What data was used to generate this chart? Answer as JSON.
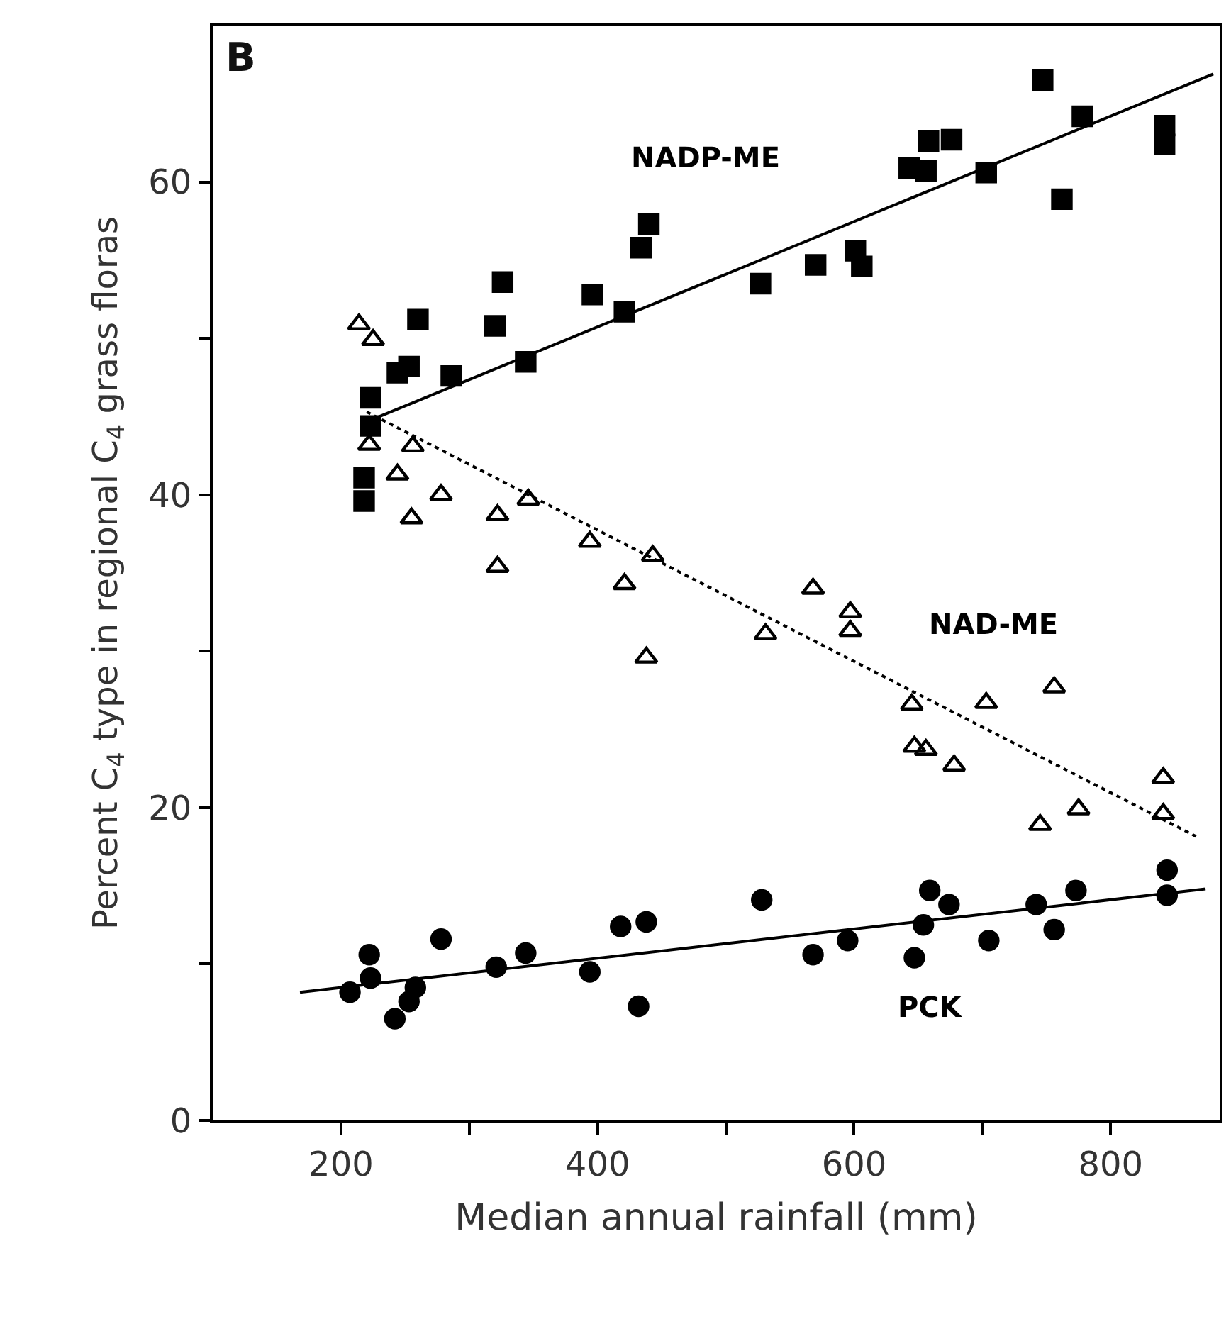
{
  "chart_data": {
    "type": "scatter",
    "xlabel": "Median annual rainfall (mm)",
    "ylabel": "Percent C$_{4}$ type in regional C$_{4}$ grass floras",
    "xlim": [
      100,
      885
    ],
    "ylim": [
      0,
      70
    ],
    "xticks": [
      200,
      {
        "value": 300,
        "label": null
      },
      400,
      {
        "value": 500,
        "label": null
      },
      600,
      {
        "value": 700,
        "label": null
      },
      800
    ],
    "yticks": [
      0,
      {
        "value": 10,
        "label": null
      },
      20,
      {
        "value": 30,
        "label": null
      },
      40,
      {
        "value": 50,
        "label": null
      },
      60
    ],
    "legend": false,
    "annotations": [
      "B"
    ],
    "series": [
      {
        "marker": "square",
        "color": "#000000",
        "x": [
          440,
          434,
          326,
          396,
          421,
          260,
          320,
          344,
          286,
          253,
          244,
          223,
          223,
          218,
          218,
          527,
          570,
          601,
          606,
          643,
          658,
          676,
          656,
          703,
          762,
          778,
          747,
          842,
          842
        ],
        "values": [
          57.3,
          55.8,
          53.6,
          52.8,
          51.7,
          51.2,
          50.8,
          48.5,
          47.6,
          48.2,
          47.8,
          46.2,
          44.4,
          41.1,
          39.6,
          53.5,
          54.7,
          55.6,
          54.6,
          60.9,
          62.6,
          62.7,
          60.7,
          60.6,
          58.9,
          64.2,
          66.5,
          63.6,
          62.4
        ]
      },
      {
        "marker": "triangle",
        "color": "#000000",
        "x": [
          214,
          225,
          222,
          256,
          244,
          278,
          255,
          346,
          322,
          322,
          394,
          443,
          421,
          438,
          568,
          531,
          597,
          597,
          645,
          703,
          756,
          647,
          656,
          678,
          745,
          775,
          841,
          841
        ],
        "values": [
          50.9,
          49.9,
          43.2,
          43.1,
          41.3,
          40.0,
          38.5,
          39.7,
          38.7,
          35.4,
          37.0,
          36.1,
          34.3,
          29.6,
          34.0,
          31.1,
          32.5,
          31.3,
          26.6,
          26.7,
          27.7,
          23.9,
          23.7,
          22.7,
          18.9,
          19.9,
          21.9,
          19.6
        ]
      },
      {
        "marker": "circle",
        "color": "#000000",
        "x": [
          222,
          207,
          223,
          242,
          253,
          258,
          278,
          321,
          344,
          394,
          418,
          438,
          432,
          528,
          568,
          595,
          647,
          654,
          659,
          674,
          705,
          742,
          756,
          773,
          844,
          844
        ],
        "values": [
          10.6,
          8.2,
          9.1,
          6.5,
          7.6,
          8.5,
          11.6,
          9.8,
          10.7,
          9.5,
          12.4,
          12.7,
          7.3,
          14.1,
          10.6,
          11.5,
          10.4,
          12.5,
          14.7,
          13.8,
          11.5,
          13.8,
          12.2,
          14.7,
          16.0,
          14.4
        ]
      },
      {
        "type": "line",
        "name": "NADP-ME",
        "line_style": "solid",
        "marker": "none",
        "color": "#000000",
        "x": [
          215,
          880
        ],
        "values": [
          44.5,
          66.9
        ]
      },
      {
        "type": "line",
        "name": "NAD-ME",
        "line_style": "dotted",
        "marker": "none",
        "color": "#000000",
        "x": [
          220,
          868
        ],
        "values": [
          45.3,
          18.1
        ]
      },
      {
        "type": "line",
        "name": "PCK",
        "line_style": "solid",
        "marker": "none",
        "color": "#000000",
        "x": [
          168,
          874
        ],
        "values": [
          8.2,
          14.8
        ]
      }
    ]
  }
}
